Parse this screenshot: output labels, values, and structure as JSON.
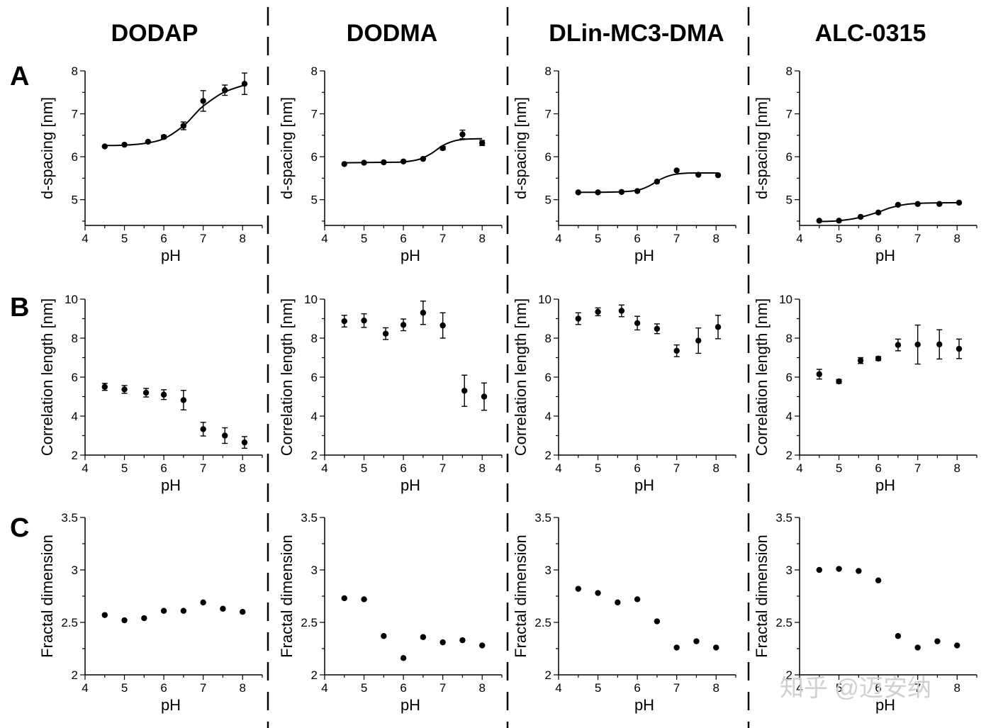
{
  "columns": [
    "DODAP",
    "DODMA",
    "DLin-MC3-DMA",
    "ALC-0315"
  ],
  "row_labels": [
    "A",
    "B",
    "C"
  ],
  "watermark": "知乎 @迈安纳",
  "chart_data": [
    {
      "type": "scatter",
      "title": "DODAP",
      "row": "A",
      "xlabel": "pH",
      "ylabel": "d-spacing [nm]",
      "xlim": [
        4,
        8.5
      ],
      "ylim": [
        4.4,
        8
      ],
      "xticks": [
        4,
        5,
        6,
        7,
        8
      ],
      "yticks": [
        5,
        6,
        7,
        8
      ],
      "fit": true,
      "x": [
        4.5,
        5.0,
        5.6,
        6.0,
        6.5,
        7.0,
        7.55,
        8.05
      ],
      "y": [
        6.24,
        6.28,
        6.35,
        6.46,
        6.72,
        7.3,
        7.55,
        7.7
      ],
      "err": [
        0.03,
        0.03,
        0.03,
        0.04,
        0.09,
        0.24,
        0.12,
        0.25
      ],
      "fit_curve": [
        [
          4.5,
          6.26
        ],
        [
          5.0,
          6.27
        ],
        [
          5.5,
          6.31
        ],
        [
          6.0,
          6.42
        ],
        [
          6.5,
          6.72
        ],
        [
          6.8,
          7.0
        ],
        [
          7.0,
          7.18
        ],
        [
          7.5,
          7.49
        ],
        [
          8.05,
          7.67
        ]
      ]
    },
    {
      "type": "scatter",
      "title": "DODMA",
      "row": "A",
      "xlabel": "pH",
      "ylabel": "d-spacing [nm]",
      "xlim": [
        4,
        8.5
      ],
      "ylim": [
        4.4,
        8
      ],
      "xticks": [
        4,
        5,
        6,
        7,
        8
      ],
      "yticks": [
        5,
        6,
        7,
        8
      ],
      "fit": true,
      "x": [
        4.5,
        5.0,
        5.5,
        6.0,
        6.5,
        7.0,
        7.5,
        8.0
      ],
      "y": [
        5.83,
        5.86,
        5.87,
        5.89,
        5.95,
        6.2,
        6.52,
        6.32
      ],
      "err": [
        0.02,
        0.02,
        0.02,
        0.02,
        0.03,
        0.04,
        0.1,
        0.06
      ],
      "fit_curve": [
        [
          4.5,
          5.86
        ],
        [
          5.5,
          5.87
        ],
        [
          6.0,
          5.88
        ],
        [
          6.4,
          5.94
        ],
        [
          6.7,
          6.07
        ],
        [
          7.0,
          6.26
        ],
        [
          7.3,
          6.37
        ],
        [
          7.6,
          6.41
        ],
        [
          8.0,
          6.42
        ]
      ]
    },
    {
      "type": "scatter",
      "title": "DLin-MC3-DMA",
      "row": "A",
      "xlabel": "pH",
      "ylabel": "d-spacing [nm]",
      "xlim": [
        4,
        8.5
      ],
      "ylim": [
        4.4,
        8
      ],
      "xticks": [
        4,
        5,
        6,
        7,
        8
      ],
      "yticks": [
        5,
        6,
        7,
        8
      ],
      "fit": true,
      "x": [
        4.5,
        5.0,
        5.6,
        6.0,
        6.5,
        7.0,
        7.55,
        8.05
      ],
      "y": [
        5.17,
        5.17,
        5.18,
        5.2,
        5.42,
        5.68,
        5.58,
        5.57
      ],
      "err": [
        0.02,
        0.02,
        0.02,
        0.02,
        0.03,
        0.03,
        0.02,
        0.02
      ],
      "fit_curve": [
        [
          4.5,
          5.17
        ],
        [
          5.5,
          5.18
        ],
        [
          6.0,
          5.22
        ],
        [
          6.3,
          5.32
        ],
        [
          6.6,
          5.48
        ],
        [
          6.9,
          5.58
        ],
        [
          7.3,
          5.62
        ],
        [
          8.05,
          5.62
        ]
      ]
    },
    {
      "type": "scatter",
      "title": "ALC-0315",
      "row": "A",
      "xlabel": "pH",
      "ylabel": "d-spacing [nm]",
      "xlim": [
        4,
        8.5
      ],
      "ylim": [
        4.4,
        8
      ],
      "xticks": [
        4,
        5,
        6,
        7,
        8
      ],
      "yticks": [
        5,
        6,
        7,
        8
      ],
      "fit": true,
      "x": [
        4.5,
        5.0,
        5.55,
        6.0,
        6.5,
        7.0,
        7.55,
        8.05
      ],
      "y": [
        4.51,
        4.51,
        4.6,
        4.7,
        4.88,
        4.9,
        4.9,
        4.93
      ],
      "err": [
        0.02,
        0.02,
        0.02,
        0.02,
        0.02,
        0.02,
        0.02,
        0.02
      ],
      "fit_curve": [
        [
          4.5,
          4.49
        ],
        [
          5.0,
          4.51
        ],
        [
          5.5,
          4.58
        ],
        [
          6.0,
          4.71
        ],
        [
          6.3,
          4.81
        ],
        [
          6.7,
          4.89
        ],
        [
          7.2,
          4.92
        ],
        [
          8.05,
          4.93
        ]
      ]
    },
    {
      "type": "scatter",
      "title": "DODAP",
      "row": "B",
      "xlabel": "pH",
      "ylabel": "Correlation length [nm]",
      "xlim": [
        4,
        8.5
      ],
      "ylim": [
        2,
        10
      ],
      "xticks": [
        4,
        5,
        6,
        7,
        8
      ],
      "yticks": [
        2,
        4,
        6,
        8,
        10
      ],
      "fit": false,
      "x": [
        4.5,
        5.0,
        5.55,
        6.0,
        6.5,
        7.0,
        7.55,
        8.05
      ],
      "y": [
        5.5,
        5.37,
        5.2,
        5.1,
        4.82,
        3.33,
        3.0,
        2.65
      ],
      "err": [
        0.18,
        0.2,
        0.22,
        0.25,
        0.5,
        0.35,
        0.4,
        0.3
      ]
    },
    {
      "type": "scatter",
      "title": "DODMA",
      "row": "B",
      "xlabel": "pH",
      "ylabel": "Correlation length [nm]",
      "xlim": [
        4,
        8.5
      ],
      "ylim": [
        2,
        10
      ],
      "xticks": [
        4,
        5,
        6,
        7,
        8
      ],
      "yticks": [
        2,
        4,
        6,
        8,
        10
      ],
      "fit": false,
      "x": [
        4.5,
        5.0,
        5.55,
        6.0,
        6.5,
        7.0,
        7.55,
        8.05
      ],
      "y": [
        8.87,
        8.9,
        8.23,
        8.68,
        9.3,
        8.65,
        5.3,
        5.0
      ],
      "err": [
        0.3,
        0.35,
        0.3,
        0.3,
        0.6,
        0.65,
        0.8,
        0.7
      ]
    },
    {
      "type": "scatter",
      "title": "DLin-MC3-DMA",
      "row": "B",
      "xlabel": "pH",
      "ylabel": "Correlation length [nm]",
      "xlim": [
        4,
        8.5
      ],
      "ylim": [
        2,
        10
      ],
      "xticks": [
        4,
        5,
        6,
        7,
        8
      ],
      "yticks": [
        2,
        4,
        6,
        8,
        10
      ],
      "fit": false,
      "x": [
        4.5,
        5.0,
        5.6,
        6.0,
        6.5,
        7.0,
        7.55,
        8.05
      ],
      "y": [
        9.0,
        9.35,
        9.4,
        8.77,
        8.48,
        7.35,
        7.87,
        8.57
      ],
      "err": [
        0.3,
        0.2,
        0.3,
        0.35,
        0.25,
        0.3,
        0.65,
        0.6
      ]
    },
    {
      "type": "scatter",
      "title": "ALC-0315",
      "row": "B",
      "xlabel": "pH",
      "ylabel": "Correlation length [nm]",
      "xlim": [
        4,
        8.5
      ],
      "ylim": [
        2,
        10
      ],
      "xticks": [
        4,
        5,
        6,
        7,
        8
      ],
      "yticks": [
        2,
        4,
        6,
        8,
        10
      ],
      "fit": false,
      "x": [
        4.5,
        5.0,
        5.55,
        6.0,
        6.5,
        7.0,
        7.55,
        8.05
      ],
      "y": [
        6.15,
        5.78,
        6.85,
        6.95,
        7.65,
        7.67,
        7.68,
        7.45
      ],
      "err": [
        0.25,
        0.1,
        0.15,
        0.1,
        0.3,
        1.0,
        0.75,
        0.5
      ]
    },
    {
      "type": "scatter",
      "title": "DODAP",
      "row": "C",
      "xlabel": "pH",
      "ylabel": "Fractal dimension",
      "xlim": [
        4,
        8.5
      ],
      "ylim": [
        2,
        3.5
      ],
      "xticks": [
        4,
        5,
        6,
        7,
        8
      ],
      "yticks": [
        2,
        2.5,
        3,
        3.5
      ],
      "fit": false,
      "x": [
        4.5,
        5.0,
        5.5,
        6.0,
        6.5,
        7.0,
        7.5,
        8.0
      ],
      "y": [
        2.57,
        2.52,
        2.54,
        2.61,
        2.61,
        2.69,
        2.63,
        2.6
      ]
    },
    {
      "type": "scatter",
      "title": "DODMA",
      "row": "C",
      "xlabel": "pH",
      "ylabel": "Fractal dimension",
      "xlim": [
        4,
        8.5
      ],
      "ylim": [
        2,
        3.5
      ],
      "xticks": [
        4,
        5,
        6,
        7,
        8
      ],
      "yticks": [
        2,
        2.5,
        3,
        3.5
      ],
      "fit": false,
      "x": [
        4.5,
        5.0,
        5.5,
        6.0,
        6.5,
        7.0,
        7.5,
        8.0
      ],
      "y": [
        2.73,
        2.72,
        2.37,
        2.16,
        2.36,
        2.31,
        2.33,
        2.28
      ]
    },
    {
      "type": "scatter",
      "title": "DLin-MC3-DMA",
      "row": "C",
      "xlabel": "pH",
      "ylabel": "Fractal dimension",
      "xlim": [
        4,
        8.5
      ],
      "ylim": [
        2,
        3.5
      ],
      "xticks": [
        4,
        5,
        6,
        7,
        8
      ],
      "yticks": [
        2,
        2.5,
        3,
        3.5
      ],
      "fit": false,
      "x": [
        4.5,
        5.0,
        5.5,
        6.0,
        6.5,
        7.0,
        7.5,
        8.0
      ],
      "y": [
        2.82,
        2.78,
        2.69,
        2.72,
        2.51,
        2.26,
        2.32,
        2.26
      ]
    },
    {
      "type": "scatter",
      "title": "ALC-0315",
      "row": "C",
      "xlabel": "pH",
      "ylabel": "Fractal dimension",
      "xlim": [
        4,
        8.5
      ],
      "ylim": [
        2,
        3.5
      ],
      "xticks": [
        4,
        5,
        6,
        7,
        8
      ],
      "yticks": [
        2,
        2.5,
        3,
        3.5
      ],
      "fit": false,
      "x": [
        4.5,
        5.0,
        5.5,
        6.0,
        6.5,
        7.0,
        7.5,
        8.0
      ],
      "y": [
        3.0,
        3.01,
        2.99,
        2.9,
        2.37,
        2.26,
        2.32,
        2.28
      ]
    }
  ]
}
